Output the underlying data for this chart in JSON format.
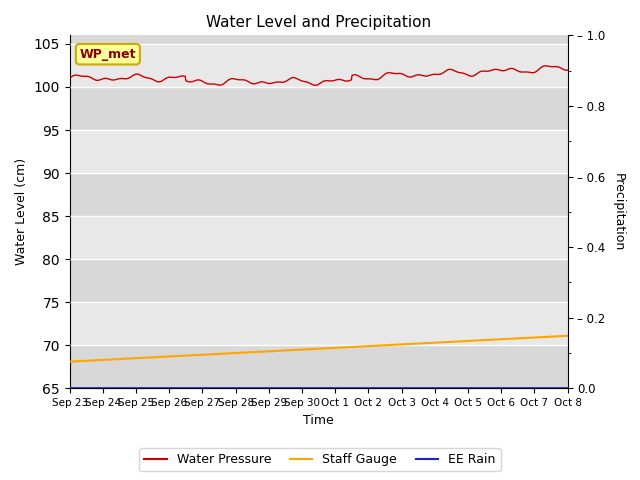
{
  "title": "Water Level and Precipitation",
  "xlabel": "Time",
  "ylabel_left": "Water Level (cm)",
  "ylabel_right": "Precipitation",
  "annotation_text": "WP_met",
  "x_tick_labels": [
    "Sep 23",
    "Sep 24",
    "Sep 25",
    "Sep 26",
    "Sep 27",
    "Sep 28",
    "Sep 29",
    "Sep 30",
    "Oct 1",
    "Oct 2",
    "Oct 3",
    "Oct 4",
    "Oct 5",
    "Oct 6",
    "Oct 7",
    "Oct 8"
  ],
  "ylim_left": [
    65,
    106
  ],
  "ylim_right": [
    0.0,
    1.0
  ],
  "yticks_left": [
    65,
    70,
    75,
    80,
    85,
    90,
    95,
    100,
    105
  ],
  "yticks_right": [
    0.0,
    0.2,
    0.4,
    0.6,
    0.8,
    1.0
  ],
  "water_pressure_color": "#cc0000",
  "staff_gauge_color": "#ffa500",
  "ee_rain_color": "#2222cc",
  "bg_color_dark": "#d8d8d8",
  "bg_color_light": "#e8e8e8",
  "legend_labels": [
    "Water Pressure",
    "Staff Gauge",
    "EE Rain"
  ],
  "annotation_box_color": "#ffff99",
  "annotation_box_edge": "#ccaa00",
  "annotation_text_color": "#8b0000",
  "figsize": [
    6.4,
    4.8
  ],
  "dpi": 100,
  "n_days": 16
}
